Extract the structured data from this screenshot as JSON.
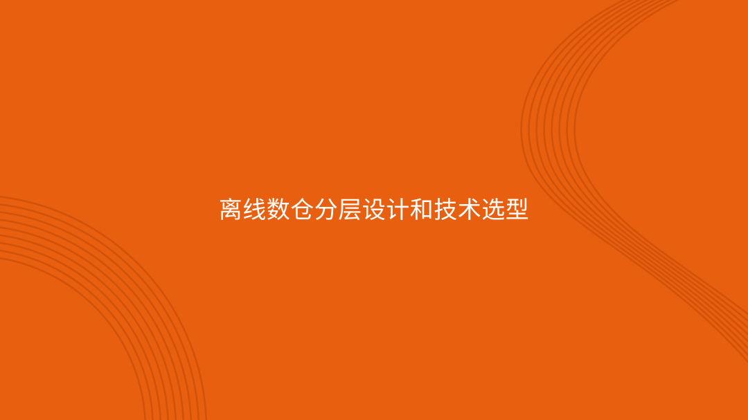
{
  "slide": {
    "title": "离线数仓分层设计和技术选型"
  },
  "colors": {
    "background": "#E85F0F",
    "decor_stroke": "#D2520A",
    "title_text": "#FFFFFF"
  },
  "decor": {
    "top_right_icon": "concentric-arcs-decoration",
    "bottom_left_icon": "concentric-arcs-decoration"
  }
}
